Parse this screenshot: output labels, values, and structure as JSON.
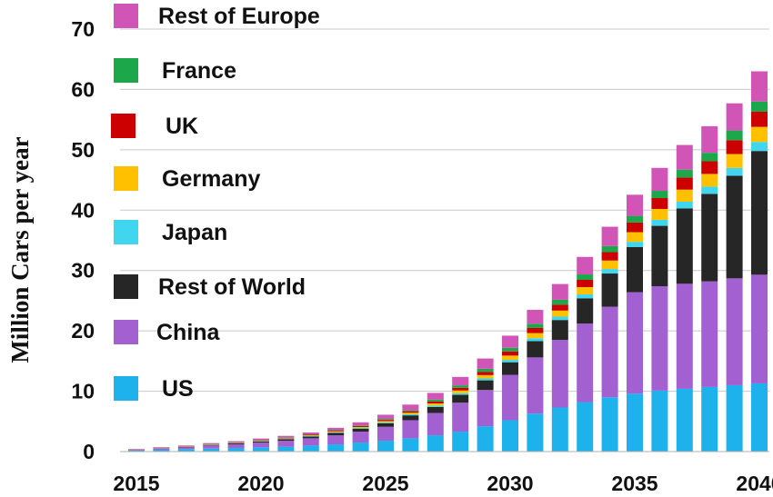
{
  "chart_data": {
    "type": "bar",
    "stacked": true,
    "ylabel": "Million Cars per year",
    "xlabel": "",
    "ylim": [
      0,
      70
    ],
    "yticks": [
      0,
      10,
      20,
      30,
      40,
      50,
      60,
      70
    ],
    "xticks": [
      2015,
      2020,
      2025,
      2030,
      2035,
      2040
    ],
    "grid": "horizontal",
    "legend_position": "top-left",
    "categories": [
      2015,
      2016,
      2017,
      2018,
      2019,
      2020,
      2021,
      2022,
      2023,
      2024,
      2025,
      2026,
      2027,
      2028,
      2029,
      2030,
      2031,
      2032,
      2033,
      2034,
      2035,
      2036,
      2037,
      2038,
      2039,
      2040
    ],
    "series": [
      {
        "name": "US",
        "color": "#1EB2EC",
        "values": [
          0.2,
          0.3,
          0.4,
          0.5,
          0.6,
          0.7,
          0.8,
          1.0,
          1.2,
          1.5,
          1.8,
          2.2,
          2.7,
          3.3,
          4.2,
          5.2,
          6.3,
          7.3,
          8.2,
          9.0,
          9.6,
          10.1,
          10.4,
          10.7,
          11.0,
          11.3
        ]
      },
      {
        "name": "China",
        "color": "#A260D0",
        "values": [
          0.1,
          0.2,
          0.3,
          0.5,
          0.6,
          0.8,
          1.0,
          1.2,
          1.5,
          1.8,
          2.3,
          3.0,
          3.7,
          4.8,
          6.0,
          7.5,
          9.3,
          11.2,
          13.0,
          15.0,
          16.8,
          17.3,
          17.4,
          17.5,
          17.7,
          18.0
        ]
      },
      {
        "name": "Rest of World",
        "color": "#262626",
        "values": [
          0.02,
          0.05,
          0.08,
          0.1,
          0.15,
          0.2,
          0.25,
          0.3,
          0.4,
          0.5,
          0.6,
          0.8,
          1.0,
          1.3,
          1.6,
          2.1,
          2.7,
          3.3,
          4.2,
          5.5,
          7.5,
          10.0,
          12.5,
          14.5,
          17.0,
          20.5
        ]
      },
      {
        "name": "Japan",
        "color": "#40D6F0",
        "values": [
          0.02,
          0.02,
          0.03,
          0.04,
          0.05,
          0.06,
          0.07,
          0.08,
          0.1,
          0.12,
          0.15,
          0.18,
          0.22,
          0.27,
          0.32,
          0.4,
          0.48,
          0.56,
          0.65,
          0.75,
          0.85,
          1.0,
          1.1,
          1.2,
          1.3,
          1.5
        ]
      },
      {
        "name": "Germany",
        "color": "#FFC000",
        "values": [
          0.02,
          0.03,
          0.04,
          0.05,
          0.06,
          0.07,
          0.08,
          0.1,
          0.12,
          0.15,
          0.2,
          0.25,
          0.35,
          0.45,
          0.55,
          0.7,
          0.85,
          1.0,
          1.2,
          1.4,
          1.6,
          1.8,
          2.0,
          2.1,
          2.3,
          2.5
        ]
      },
      {
        "name": "UK",
        "color": "#CC0000",
        "values": [
          0.02,
          0.03,
          0.04,
          0.05,
          0.06,
          0.07,
          0.08,
          0.1,
          0.12,
          0.15,
          0.2,
          0.25,
          0.35,
          0.45,
          0.55,
          0.7,
          0.85,
          1.0,
          1.2,
          1.4,
          1.6,
          1.8,
          2.0,
          2.1,
          2.3,
          2.5
        ]
      },
      {
        "name": "France",
        "color": "#1CA84A",
        "values": [
          0.02,
          0.02,
          0.03,
          0.04,
          0.05,
          0.06,
          0.07,
          0.08,
          0.1,
          0.12,
          0.15,
          0.2,
          0.3,
          0.4,
          0.5,
          0.6,
          0.7,
          0.8,
          0.9,
          1.0,
          1.1,
          1.2,
          1.3,
          1.4,
          1.6,
          1.7
        ]
      },
      {
        "name": "Rest of Europe",
        "color": "#D155B6",
        "values": [
          0.05,
          0.08,
          0.1,
          0.12,
          0.15,
          0.2,
          0.25,
          0.3,
          0.4,
          0.5,
          0.7,
          0.9,
          1.1,
          1.4,
          1.7,
          2.0,
          2.3,
          2.6,
          2.9,
          3.2,
          3.5,
          3.8,
          4.1,
          4.4,
          4.5,
          5.0
        ]
      }
    ]
  }
}
